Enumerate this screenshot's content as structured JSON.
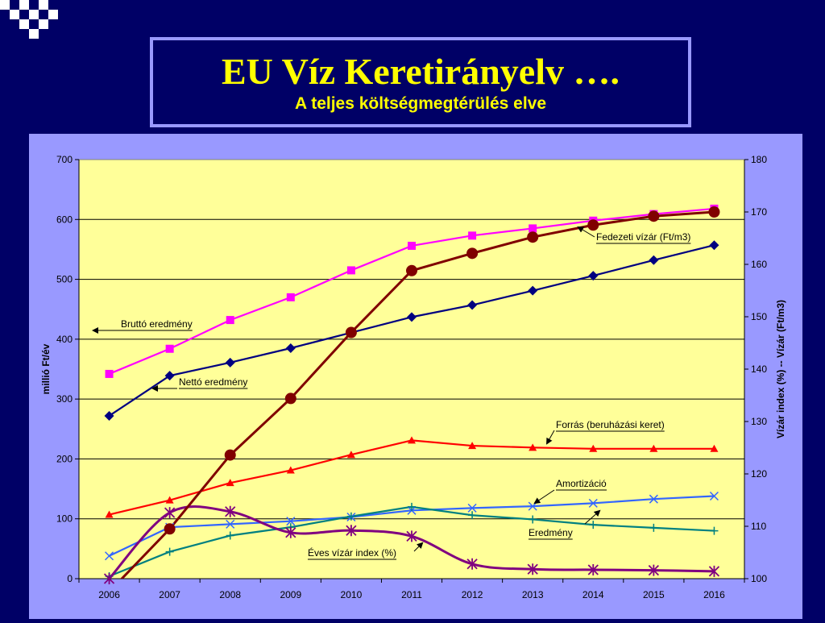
{
  "slide": {
    "title": "EU Víz Keretirányelv ….",
    "subtitle": "A teljes költségmegtérülés elve"
  },
  "colors": {
    "background": "#000066",
    "plot_area": "#ffff99",
    "panel": "#9999ff",
    "title_text": "#ffff00"
  },
  "chart_data": {
    "type": "line",
    "title": "",
    "xlabel": "",
    "ylabel": "millió Ft/év",
    "y2label": "Vízár index (%) -- Vízár (Ft/m3)",
    "x": [
      "2006",
      "2007",
      "2008",
      "2009",
      "2010",
      "2011",
      "2012",
      "2013",
      "2014",
      "2015",
      "2016"
    ],
    "ylim": [
      0,
      700
    ],
    "y2lim": [
      100,
      180
    ],
    "yticks": [
      "0",
      "100",
      "200",
      "300",
      "400",
      "500",
      "600",
      "700"
    ],
    "y2ticks": [
      "100",
      "110",
      "120",
      "130",
      "140",
      "150",
      "160",
      "170",
      "180"
    ],
    "grid": "horizontal",
    "series": [
      {
        "name": "Bruttó eredmény",
        "axis": "left",
        "color": "#ff00ff",
        "marker": "square",
        "smooth": false,
        "values": [
          342,
          384,
          432,
          470,
          515,
          556,
          573,
          585,
          598,
          609,
          618
        ]
      },
      {
        "name": "Nettó eredmény",
        "axis": "left",
        "color": "#000080",
        "marker": "diamond",
        "smooth": false,
        "values": [
          272,
          339,
          361,
          385,
          411,
          437,
          457,
          481,
          506,
          532,
          557
        ]
      },
      {
        "name": "Fedezeti vízár (Ft/m3)",
        "axis": "right",
        "color": "#800000",
        "marker": "circle",
        "smooth": false,
        "values": [
          97.5,
          109.5,
          123.6,
          134.4,
          147.0,
          158.8,
          162.1,
          165.2,
          167.5,
          169.2,
          170.0
        ]
      },
      {
        "name": "Forrás (beruházási keret)",
        "axis": "left",
        "color": "#ff0000",
        "marker": "triangle",
        "smooth": false,
        "values": [
          107,
          131,
          160,
          181,
          207,
          231,
          222,
          219,
          217,
          217,
          217
        ]
      },
      {
        "name": "Amortizáció",
        "axis": "left",
        "color": "#3366ff",
        "marker": "x",
        "smooth": false,
        "values": [
          38,
          86,
          91,
          96,
          103,
          114,
          118,
          121,
          126,
          133,
          138
        ]
      },
      {
        "name": "Eredmény",
        "axis": "left",
        "color": "#008080",
        "marker": "plus",
        "smooth": false,
        "values": [
          4,
          45,
          72,
          86,
          104,
          120,
          106,
          99,
          90,
          85,
          80
        ]
      },
      {
        "name": "Éves vízár index (%)",
        "axis": "right",
        "color": "#800080",
        "marker": "star",
        "smooth": true,
        "values": [
          100.0,
          112.6,
          112.8,
          108.8,
          109.2,
          108.1,
          102.8,
          101.8,
          101.7,
          101.6,
          101.4
        ]
      }
    ],
    "annotations": [
      {
        "text": "Fedezeti vízár (Ft/m3)",
        "series": 2
      },
      {
        "text": "Bruttó eredmény",
        "series": 0
      },
      {
        "text": "Nettó eredmény",
        "series": 1
      },
      {
        "text": "Forrás (beruházási keret)",
        "series": 3
      },
      {
        "text": "Amortizáció",
        "series": 4
      },
      {
        "text": "Eredmény",
        "series": 5
      },
      {
        "text": "Éves vízár index (%)",
        "series": 6
      }
    ]
  }
}
